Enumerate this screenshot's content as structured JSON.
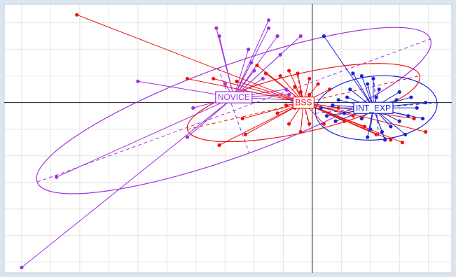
{
  "chart_data": {
    "type": "scatter",
    "title": "",
    "xlabel": "",
    "ylabel": "",
    "grid": true,
    "xlim": [
      -5.3,
      2.4
    ],
    "ylim": [
      -3.2,
      1.85
    ],
    "series": [
      {
        "name": "NOVICE",
        "color": "#a030e0",
        "centroid": [
          -1.35,
          0.1
        ],
        "ellipse": {
          "center": [
            -1.35,
            -0.15
          ],
          "rx": 3.6,
          "ry": 0.85,
          "angle_deg": -20
        },
        "points": [
          [
            -5.0,
            -3.1
          ],
          [
            -4.4,
            -1.4
          ],
          [
            -3.0,
            0.4
          ],
          [
            -2.15,
            -0.65
          ],
          [
            -2.05,
            -0.1
          ],
          [
            -1.65,
            1.4
          ],
          [
            -1.6,
            1.25
          ],
          [
            -1.1,
            1.0
          ],
          [
            -1.05,
            0.75
          ],
          [
            -1.0,
            0.6
          ],
          [
            -0.85,
            0.45
          ],
          [
            -0.75,
            1.55
          ],
          [
            -0.75,
            1.4
          ],
          [
            -0.6,
            1.25
          ],
          [
            -0.2,
            1.25
          ],
          [
            -0.55,
            0.9
          ],
          [
            -1.5,
            0.35
          ],
          [
            -0.45,
            0.25
          ],
          [
            -0.4,
            0.15
          ],
          [
            -0.35,
            0.05
          ]
        ]
      },
      {
        "name": "BSS",
        "color": "#ee1111",
        "centroid": [
          -0.15,
          0.0
        ],
        "ellipse": {
          "center": [
            -0.15,
            0.0
          ],
          "rx": 2.05,
          "ry": 0.55,
          "angle_deg": -13
        },
        "points": [
          [
            -4.05,
            1.65
          ],
          [
            -2.15,
            0.45
          ],
          [
            -1.7,
            0.45
          ],
          [
            -1.3,
            0.4
          ],
          [
            -0.95,
            0.7
          ],
          [
            -0.8,
            0.55
          ],
          [
            -0.55,
            0.5
          ],
          [
            -0.4,
            0.6
          ],
          [
            -0.25,
            0.55
          ],
          [
            -0.05,
            0.45
          ],
          [
            -0.3,
            0.3
          ],
          [
            -0.2,
            0.2
          ],
          [
            -0.05,
            0.15
          ],
          [
            0.1,
            0.35
          ],
          [
            0.3,
            0.25
          ],
          [
            -1.6,
            -0.8
          ],
          [
            -1.15,
            -0.6
          ],
          [
            -1.2,
            -0.3
          ],
          [
            -0.6,
            -0.2
          ],
          [
            -0.45,
            -0.05
          ],
          [
            -0.3,
            -0.1
          ],
          [
            -0.4,
            -0.4
          ],
          [
            -0.2,
            -0.55
          ],
          [
            -0.05,
            -0.4
          ],
          [
            0.2,
            -0.4
          ],
          [
            0.55,
            -0.35
          ],
          [
            0.9,
            -0.45
          ],
          [
            1.1,
            -0.6
          ],
          [
            1.35,
            -0.7
          ],
          [
            1.55,
            -0.75
          ],
          [
            1.95,
            -0.55
          ],
          [
            1.75,
            -0.3
          ],
          [
            0.45,
            -0.1
          ],
          [
            0.7,
            -0.25
          ]
        ]
      },
      {
        "name": "INT_EXP",
        "color": "#1a22d8",
        "centroid": [
          1.05,
          -0.1
        ],
        "ellipse": {
          "center": [
            1.1,
            -0.1
          ],
          "rx": 1.05,
          "ry": 0.6,
          "angle_deg": -5
        },
        "points": [
          [
            0.2,
            1.25
          ],
          [
            0.7,
            0.55
          ],
          [
            0.85,
            0.5
          ],
          [
            1.05,
            0.45
          ],
          [
            0.95,
            0.35
          ],
          [
            0.65,
            0.25
          ],
          [
            0.45,
            0.05
          ],
          [
            0.35,
            -0.05
          ],
          [
            0.15,
            -0.1
          ],
          [
            0.25,
            -0.25
          ],
          [
            0.4,
            -0.35
          ],
          [
            0.55,
            -0.2
          ],
          [
            0.75,
            -0.15
          ],
          [
            0.85,
            -0.3
          ],
          [
            1.0,
            -0.5
          ],
          [
            1.2,
            -0.55
          ],
          [
            1.35,
            -0.45
          ],
          [
            1.5,
            -0.35
          ],
          [
            1.65,
            -0.25
          ],
          [
            1.8,
            -0.1
          ],
          [
            1.95,
            0.0
          ],
          [
            1.7,
            0.1
          ],
          [
            1.45,
            0.05
          ],
          [
            1.3,
            -0.05
          ],
          [
            1.1,
            0.1
          ],
          [
            1.9,
            -0.3
          ],
          [
            1.6,
            -0.6
          ],
          [
            1.25,
            -0.7
          ],
          [
            0.95,
            -0.65
          ],
          [
            0.6,
            0.1
          ],
          [
            1.15,
            0.25
          ],
          [
            1.5,
            0.2
          ]
        ]
      }
    ],
    "centroid_labels": [
      "NOVICE",
      "BSS",
      "INT_EXP"
    ]
  }
}
